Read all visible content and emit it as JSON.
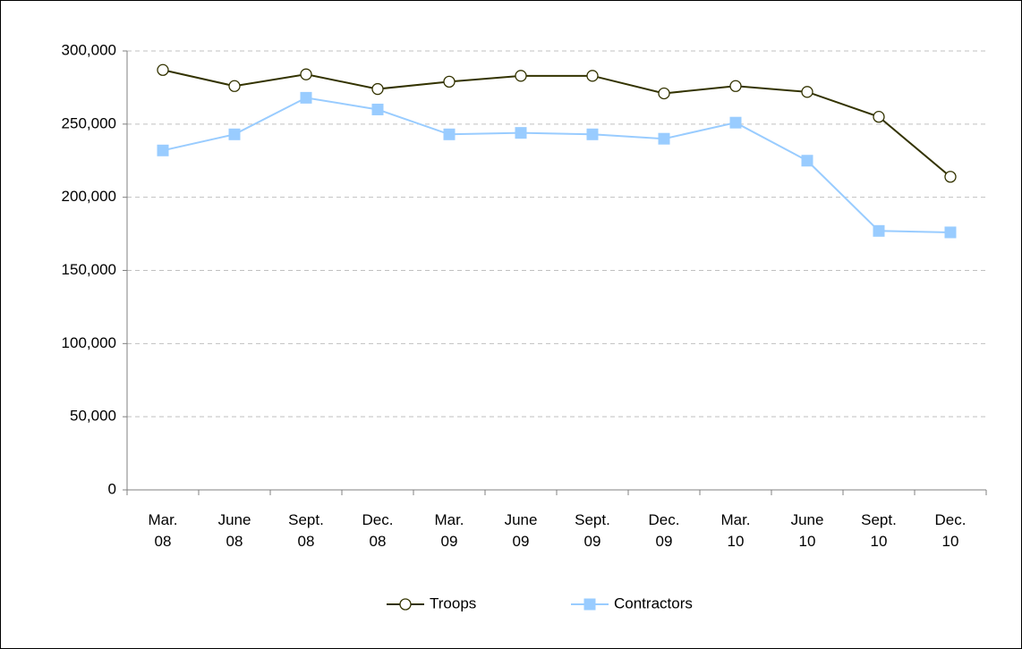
{
  "chart_data": {
    "type": "line",
    "categories": [
      "Mar.\n08",
      "June\n08",
      "Sept.\n08",
      "Dec.\n08",
      "Mar.\n09",
      "June\n09",
      "Sept.\n09",
      "Dec.\n09",
      "Mar.\n10",
      "June\n10",
      "Sept.\n10",
      "Dec.\n10"
    ],
    "series": [
      {
        "name": "Troops",
        "color": "#333300",
        "marker": "circle",
        "values": [
          287000,
          276000,
          284000,
          274000,
          279000,
          283000,
          283000,
          271000,
          276000,
          272000,
          255000,
          214000
        ]
      },
      {
        "name": "Contractors",
        "color": "#99ccff",
        "marker": "square",
        "values": [
          232000,
          243000,
          268000,
          260000,
          243000,
          244000,
          243000,
          240000,
          251000,
          225000,
          177000,
          176000
        ]
      }
    ],
    "ylim": [
      0,
      300000
    ],
    "yticks": [
      0,
      {
        "value": 50000,
        "label": "50,000"
      },
      {
        "value": 100000,
        "label": "100,000"
      },
      {
        "value": 150000,
        "label": "150,000"
      },
      {
        "value": 200000,
        "label": "200,000"
      },
      {
        "value": 250000,
        "label": "250,000"
      },
      {
        "value": 300000,
        "label": "300,000"
      }
    ],
    "grid": true,
    "legend": "bottom"
  }
}
